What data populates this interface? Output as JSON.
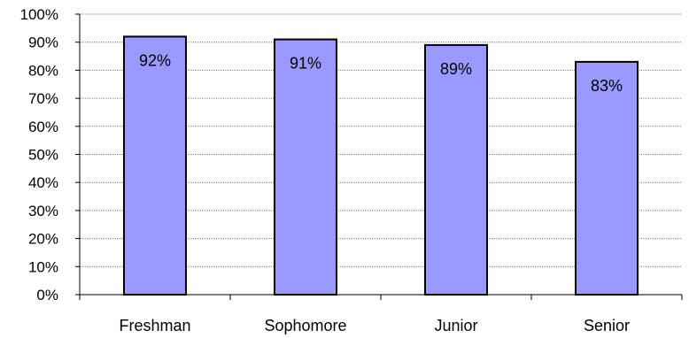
{
  "chart_data": {
    "type": "bar",
    "categories": [
      "Freshman",
      "Sophomore",
      "Junior",
      "Senior"
    ],
    "values": [
      92,
      91,
      89,
      83
    ],
    "data_labels": [
      "92%",
      "91%",
      "89%",
      "83%"
    ],
    "ylim": [
      0,
      100
    ],
    "yticks": [
      0,
      10,
      20,
      30,
      40,
      50,
      60,
      70,
      80,
      90,
      100
    ],
    "ytick_labels": [
      "0%",
      "10%",
      "20%",
      "30%",
      "40%",
      "50%",
      "60%",
      "70%",
      "80%",
      "90%",
      "100%"
    ],
    "title": "",
    "xlabel": "",
    "ylabel": "",
    "grid": true,
    "legend": "none",
    "colors": {
      "bar_fill": "#9999ff",
      "bar_stroke": "#000000",
      "grid": "#808080",
      "axis": "#000000",
      "background": "#ffffff"
    }
  }
}
